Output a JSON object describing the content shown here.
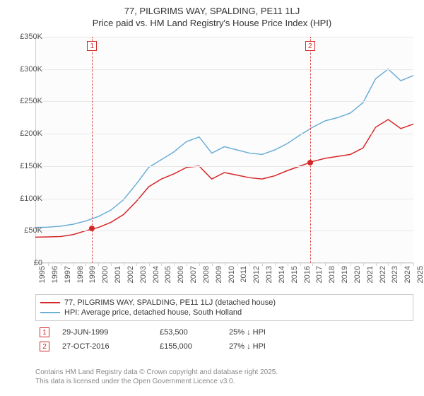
{
  "title": "77, PILGRIMS WAY, SPALDING, PE11 1LJ",
  "subtitle": "Price paid vs. HM Land Registry's House Price Index (HPI)",
  "chart": {
    "type": "line",
    "background_color": "#fcfcfc",
    "grid_color": "#e8e8e8",
    "axis_color": "#d0d0d0",
    "y": {
      "min": 0,
      "max": 350000,
      "step": 50000,
      "prefix": "£",
      "suffix": "K",
      "divisor": 1000
    },
    "x": {
      "years": [
        1995,
        1996,
        1997,
        1998,
        1999,
        2000,
        2001,
        2002,
        2003,
        2004,
        2005,
        2006,
        2007,
        2008,
        2009,
        2010,
        2011,
        2012,
        2013,
        2014,
        2015,
        2016,
        2017,
        2018,
        2019,
        2020,
        2021,
        2022,
        2023,
        2024,
        2025
      ]
    },
    "series": [
      {
        "name": "property",
        "label": "77, PILGRIMS WAY, SPALDING, PE11 1LJ (detached house)",
        "color": "#d62728",
        "width": 1.5,
        "values": [
          40000,
          40500,
          41000,
          44000,
          50000,
          55000,
          63000,
          75000,
          95000,
          118000,
          130000,
          138000,
          148000,
          150000,
          130000,
          140000,
          136000,
          132000,
          130000,
          135000,
          143000,
          150000,
          157000,
          162000,
          165000,
          168000,
          178000,
          210000,
          222000,
          208000,
          215000
        ]
      },
      {
        "name": "hpi",
        "label": "HPI: Average price, detached house, South Holland",
        "color": "#6baed6",
        "width": 1.5,
        "values": [
          55000,
          55500,
          57000,
          60000,
          65000,
          72000,
          82000,
          98000,
          122000,
          148000,
          160000,
          172000,
          188000,
          195000,
          170000,
          180000,
          175000,
          170000,
          168000,
          175000,
          185000,
          198000,
          210000,
          220000,
          225000,
          232000,
          248000,
          285000,
          300000,
          282000,
          290000
        ]
      }
    ],
    "sale_markers": [
      {
        "id": "1",
        "year": 1999.5,
        "price": 53500,
        "color": "#d62728"
      },
      {
        "id": "2",
        "year": 2016.8,
        "price": 155000,
        "color": "#d62728"
      }
    ]
  },
  "legend": {
    "items": [
      {
        "label": "77, PILGRIMS WAY, SPALDING, PE11 1LJ (detached house)",
        "color": "#d62728"
      },
      {
        "label": "HPI: Average price, detached house, South Holland",
        "color": "#6baed6"
      }
    ]
  },
  "sales": [
    {
      "id": "1",
      "date": "29-JUN-1999",
      "price": "£53,500",
      "diff": "25% ↓ HPI",
      "color": "#d62728"
    },
    {
      "id": "2",
      "date": "27-OCT-2016",
      "price": "£155,000",
      "diff": "27% ↓ HPI",
      "color": "#d62728"
    }
  ],
  "attribution": {
    "line1": "Contains HM Land Registry data © Crown copyright and database right 2025.",
    "line2": "This data is licensed under the Open Government Licence v3.0."
  }
}
